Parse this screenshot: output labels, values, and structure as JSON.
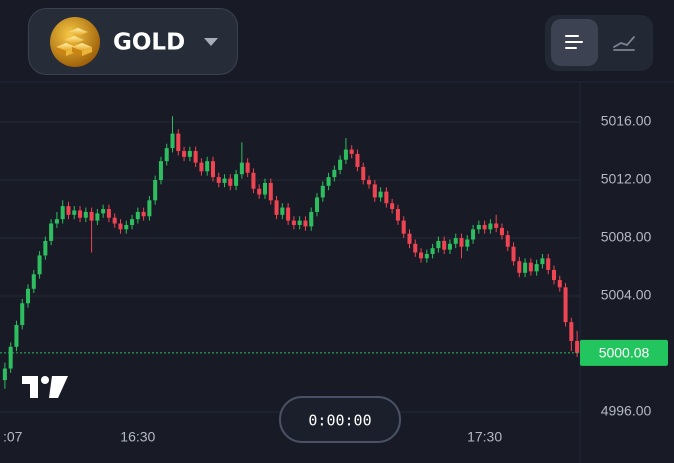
{
  "header": {
    "asset": "GOLD"
  },
  "timer": "0:00:00",
  "chart_data": {
    "type": "candlestick",
    "up_color": "#2ebd5f",
    "down_color": "#ef4452",
    "grid": true,
    "xlim": [
      -0.5,
      99.5
    ],
    "ylim": [
      4995.45,
      5018.76
    ],
    "xticks": [
      {
        "value": 0,
        "label": ":07"
      },
      {
        "value": 23,
        "label": "16:30"
      },
      {
        "value": 83,
        "label": "17:30"
      }
    ],
    "yticks": [
      {
        "value": 4996,
        "label": "4996.00"
      },
      {
        "value": 5004,
        "label": "5004.00"
      },
      {
        "value": 5008,
        "label": "5008.00"
      },
      {
        "value": 5012,
        "label": "5012.00"
      },
      {
        "value": 5016,
        "label": "5016.00"
      }
    ],
    "open": [
      4998.2,
      4999.0,
      5000.5,
      5002.0,
      5003.5,
      5004.5,
      5005.5,
      5006.8,
      5007.8,
      5009.0,
      5009.3,
      5010.2,
      5009.6,
      5009.9,
      5009.4,
      5009.8,
      5009.2,
      5009.7,
      5010.0,
      5009.4,
      5009.0,
      5008.6,
      5008.9,
      5009.3,
      5009.8,
      5009.5,
      5010.6,
      5012.0,
      5013.3,
      5014.2,
      5015.2,
      5014.0,
      5013.6,
      5014.0,
      5013.2,
      5012.6,
      5013.3,
      5012.2,
      5011.8,
      5012.1,
      5011.6,
      5012.4,
      5013.2,
      5012.5,
      5011.4,
      5011.0,
      5011.8,
      5010.6,
      5009.6,
      5010.1,
      5009.2,
      5008.9,
      5009.2,
      5008.8,
      5009.8,
      5010.8,
      5011.6,
      5012.2,
      5012.7,
      5013.4,
      5014.1,
      5013.8,
      5012.9,
      5012.0,
      5011.7,
      5010.8,
      5011.2,
      5010.4,
      5010.0,
      5009.2,
      5008.3,
      5007.6,
      5007.0,
      5006.6,
      5006.9,
      5007.3,
      5007.8,
      5007.2,
      5007.6,
      5008.0,
      5007.4,
      5007.9,
      5008.6,
      5008.9,
      5008.6,
      5009.0,
      5008.7,
      5008.2,
      5007.4,
      5006.4,
      5005.6,
      5006.3,
      5005.7,
      5006.2,
      5006.6,
      5005.8,
      5005.1,
      5004.6,
      5002.2,
      5000.9
    ],
    "high": [
      4999.4,
      5000.8,
      5002.3,
      5003.8,
      5004.8,
      5005.8,
      5007.1,
      5008.1,
      5009.3,
      5009.8,
      5010.6,
      5010.5,
      5010.2,
      5010.2,
      5010.1,
      5010.1,
      5010.0,
      5010.3,
      5010.3,
      5009.7,
      5009.3,
      5009.2,
      5009.6,
      5010.1,
      5010.1,
      5010.9,
      5012.3,
      5013.6,
      5014.5,
      5016.4,
      5015.5,
      5014.3,
      5014.3,
      5014.3,
      5013.5,
      5013.6,
      5013.6,
      5012.5,
      5012.4,
      5012.4,
      5012.7,
      5014.6,
      5013.5,
      5012.8,
      5011.7,
      5012.1,
      5012.1,
      5010.9,
      5010.4,
      5010.4,
      5009.5,
      5009.5,
      5009.5,
      5010.1,
      5011.1,
      5011.9,
      5012.5,
      5013.0,
      5013.7,
      5014.9,
      5014.4,
      5014.1,
      5013.2,
      5012.3,
      5012.0,
      5011.5,
      5011.5,
      5010.7,
      5010.3,
      5009.5,
      5008.6,
      5007.9,
      5007.3,
      5007.2,
      5007.6,
      5008.1,
      5008.1,
      5007.9,
      5008.3,
      5008.3,
      5008.2,
      5008.9,
      5009.2,
      5009.2,
      5009.3,
      5009.6,
      5009.0,
      5008.5,
      5007.7,
      5006.7,
      5006.6,
      5006.6,
      5006.5,
      5006.9,
      5006.9,
      5006.1,
      5005.4,
      5004.9,
      5002.5,
      5001.6
    ],
    "low": [
      4997.6,
      4998.7,
      5000.2,
      5001.7,
      5003.2,
      5004.2,
      5005.2,
      5006.5,
      5007.5,
      5008.7,
      5009.0,
      5009.3,
      5009.3,
      5009.1,
      5009.1,
      5007.0,
      5008.9,
      5009.4,
      5009.1,
      5008.7,
      5008.3,
      5008.3,
      5008.6,
      5009.0,
      5009.2,
      5009.2,
      5010.3,
      5011.7,
      5013.0,
      5013.9,
      5013.7,
      5013.3,
      5013.3,
      5012.9,
      5012.3,
      5012.3,
      5011.9,
      5011.5,
      5011.5,
      5011.3,
      5011.3,
      5012.1,
      5012.2,
      5011.1,
      5010.7,
      5010.7,
      5010.3,
      5009.3,
      5009.3,
      5008.9,
      5008.6,
      5008.6,
      5008.5,
      5008.5,
      5009.5,
      5010.5,
      5011.3,
      5011.9,
      5012.4,
      5013.1,
      5013.5,
      5012.6,
      5011.7,
      5011.4,
      5010.5,
      5010.5,
      5010.1,
      5009.7,
      5008.9,
      5008.0,
      5007.3,
      5006.7,
      5006.3,
      5006.3,
      5006.6,
      5007.0,
      5006.9,
      5006.9,
      5007.3,
      5006.6,
      5007.1,
      5007.6,
      5008.3,
      5008.3,
      5008.3,
      5008.4,
      5007.9,
      5007.1,
      5006.1,
      5005.3,
      5005.3,
      5005.4,
      5005.4,
      5005.9,
      5005.5,
      5004.8,
      5004.3,
      5001.9,
      5000.2,
      4999.8
    ],
    "close": [
      4999.0,
      5000.5,
      5002.0,
      5003.5,
      5004.5,
      5005.5,
      5006.8,
      5007.8,
      5009.0,
      5009.3,
      5010.2,
      5009.6,
      5009.9,
      5009.4,
      5009.8,
      5009.2,
      5009.7,
      5010.0,
      5009.4,
      5009.0,
      5008.6,
      5008.9,
      5009.3,
      5009.8,
      5009.5,
      5010.6,
      5012.0,
      5013.3,
      5014.2,
      5015.2,
      5014.0,
      5013.6,
      5014.0,
      5013.2,
      5012.6,
      5013.3,
      5012.2,
      5011.8,
      5012.1,
      5011.6,
      5012.4,
      5013.2,
      5012.5,
      5011.4,
      5011.0,
      5011.8,
      5010.6,
      5009.6,
      5010.1,
      5009.2,
      5008.9,
      5009.2,
      5008.8,
      5009.8,
      5010.8,
      5011.6,
      5012.2,
      5012.7,
      5013.4,
      5014.1,
      5013.8,
      5012.9,
      5012.0,
      5011.7,
      5010.8,
      5011.2,
      5010.4,
      5010.0,
      5009.2,
      5008.3,
      5007.6,
      5007.0,
      5006.6,
      5006.9,
      5007.3,
      5007.8,
      5007.2,
      5007.6,
      5008.0,
      5007.4,
      5007.9,
      5008.6,
      5008.9,
      5008.6,
      5009.0,
      5008.7,
      5008.2,
      5007.4,
      5006.4,
      5005.6,
      5006.3,
      5005.7,
      5006.2,
      5006.6,
      5005.8,
      5005.1,
      5004.6,
      5002.2,
      5000.9,
      5000.08
    ]
  }
}
